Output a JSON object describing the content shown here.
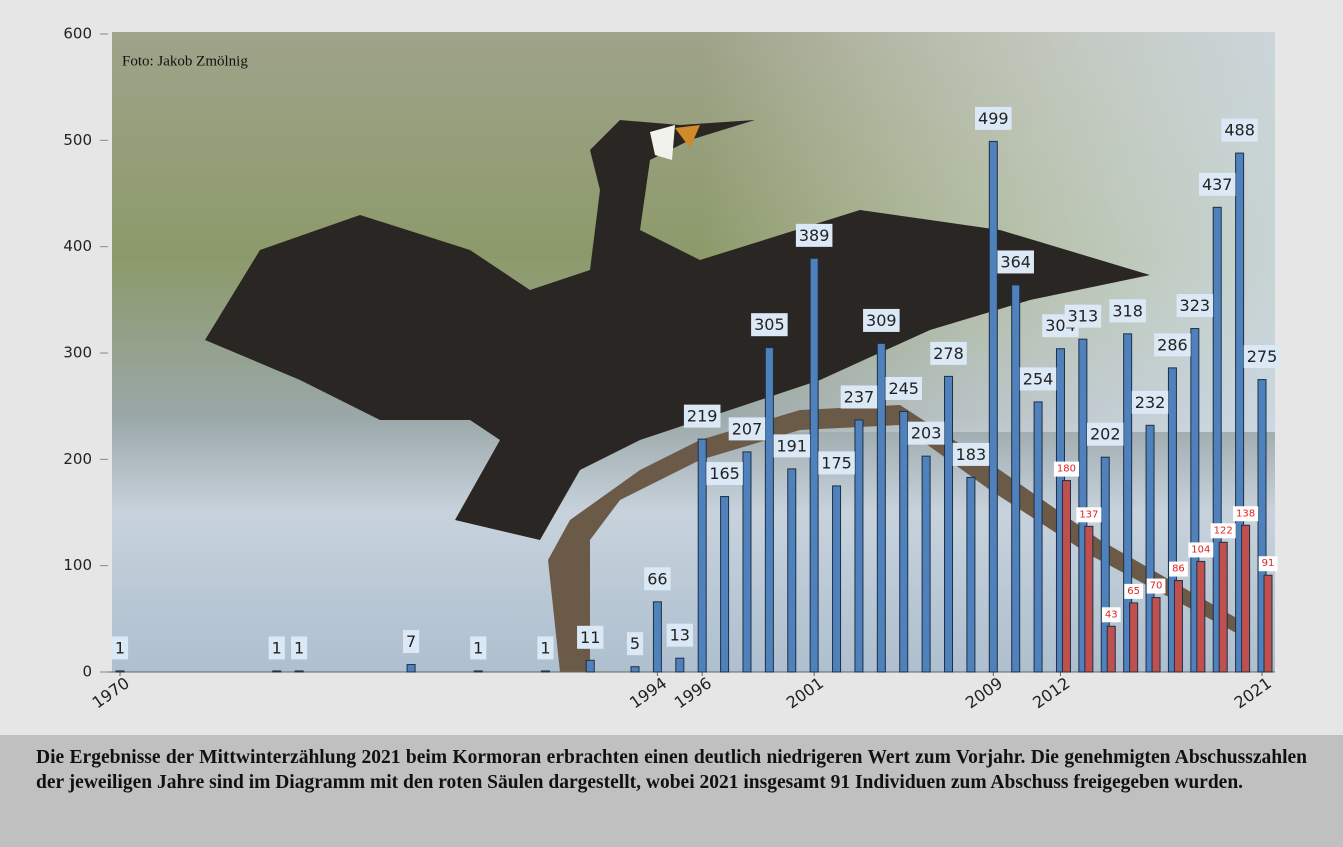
{
  "chart_data": {
    "type": "bar",
    "credit": "Foto: Jakob Zmölnig",
    "caption": "Die Ergebnisse der Mittwinterzählung 2021 beim Kormoran erbrachten einen deutlich niedrigeren Wert zum Vorjahr. Die genehmigten Abschusszahlen der jeweiligen Jahre sind im Diagramm mit den roten Säulen dargestellt, wobei 2021 insgesamt 91 Individuen zum Abschuss freigegeben wurden.",
    "xlim": [
      1970,
      2021
    ],
    "xticks": [
      1970,
      1994,
      1996,
      2001,
      2009,
      2012,
      2021
    ],
    "ylim": [
      0,
      600
    ],
    "yticks": [
      0,
      100,
      200,
      300,
      400,
      500,
      600
    ],
    "series": [
      {
        "color": "#4f81bd",
        "label_fill": "#dbe8f5",
        "label_color": "#222222",
        "x": [
          1970,
          1977,
          1978,
          1983,
          1986,
          1989,
          1991,
          1993,
          1994,
          1995,
          1996,
          1997,
          1998,
          1999,
          2000,
          2001,
          2002,
          2003,
          2004,
          2005,
          2006,
          2007,
          2008,
          2009,
          2010,
          2011,
          2012,
          2013,
          2014,
          2015,
          2016,
          2017,
          2018,
          2019,
          2020,
          2021
        ],
        "values": [
          1,
          1,
          1,
          7,
          1,
          1,
          11,
          5,
          66,
          13,
          219,
          165,
          207,
          305,
          191,
          389,
          175,
          237,
          309,
          245,
          203,
          278,
          183,
          499,
          364,
          254,
          304,
          313,
          202,
          318,
          232,
          286,
          323,
          437,
          488,
          275
        ]
      },
      {
        "color": "#c0504d",
        "label_fill": "#ffffff",
        "label_color": "#e02020",
        "x": [
          2012,
          2013,
          2014,
          2015,
          2016,
          2017,
          2018,
          2019,
          2020,
          2021
        ],
        "values": [
          180,
          137,
          43,
          65,
          70,
          86,
          104,
          122,
          138,
          91
        ]
      }
    ]
  }
}
